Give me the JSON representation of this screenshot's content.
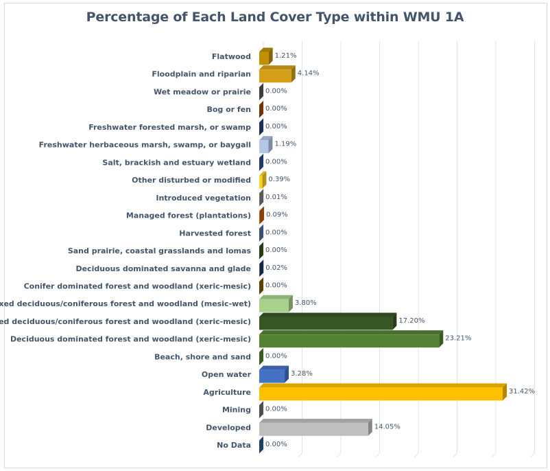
{
  "chart_data": {
    "type": "bar",
    "orientation": "horizontal",
    "style": "3d",
    "title": "Percentage of Each Land Cover Type within WMU 1A",
    "xlabel": "",
    "ylabel": "",
    "xlim": [
      0,
      35
    ],
    "grid": true,
    "legend": "none",
    "categories": [
      "Flatwood",
      "Floodplain and riparian",
      "Wet meadow or prairie",
      "Bog or fen",
      "Freshwater forested  marsh, or swamp",
      "Freshwater herbaceous marsh, swamp, or baygall",
      "Salt, brackish and estuary wetland",
      "Other disturbed or modified",
      "Introduced vegetation",
      "Managed forest (plantations)",
      "Harvested forest",
      "Sand prairie, coastal grasslands and lomas",
      "Deciduous dominated savanna and glade",
      "Conifer dominated forest and woodland (xeric-mesic)",
      "Mixed deciduous/coniferous forest and woodland (mesic-wet)",
      "Mixed deciduous/coniferous forest and woodland  (xeric-mesic)",
      "Deciduous dominated forest and woodland (xeric-mesic)",
      "Beach, shore and sand",
      "Open water",
      "Agriculture",
      "Mining",
      "Developed",
      "No Data"
    ],
    "values": [
      1.21,
      4.14,
      0.0,
      0.0,
      0.0,
      1.19,
      0.0,
      0.39,
      0.01,
      0.09,
      0.0,
      0.0,
      0.02,
      0.0,
      3.8,
      17.2,
      23.21,
      0.0,
      3.28,
      31.42,
      0.0,
      14.05,
      0.0
    ],
    "data_labels": [
      "1.21%",
      "4.14%",
      "0.00%",
      "0.00%",
      "0.00%",
      "1.19%",
      "0.00%",
      "0.39%",
      "0.01%",
      "0.09%",
      "0.00%",
      "0.00%",
      "0.02%",
      "0.00%",
      "3.80%",
      "17.20%",
      "23.21%",
      "0.00%",
      "3.28%",
      "31.42%",
      "0.00%",
      "14.05%",
      "0.00%"
    ],
    "colors": [
      "#bf9000",
      "#d4a017",
      "#595959",
      "#9e480e",
      "#264478",
      "#b4c7e7",
      "#335593",
      "#ffd324",
      "#7f7f7f",
      "#c55a11",
      "#4e73a0",
      "#375623",
      "#1f3864",
      "#7f6000",
      "#a9d18e",
      "#375623",
      "#548235",
      "#548235",
      "#4472c4",
      "#ffc000",
      "#6f6f6f",
      "#bfbfbf",
      "#2e5c8a"
    ]
  }
}
